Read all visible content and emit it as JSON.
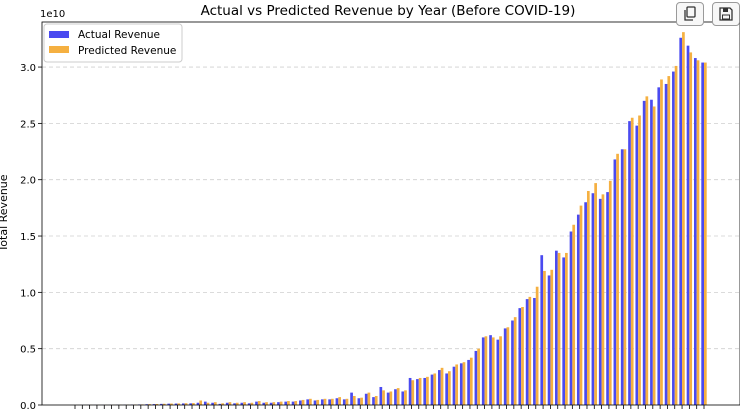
{
  "toolbar": {
    "buttons": [
      {
        "name": "copy-button",
        "icon": "copy-icon"
      },
      {
        "name": "save-button",
        "icon": "floppy-disk-icon"
      }
    ]
  },
  "chart_data": {
    "type": "bar",
    "title": "Actual vs Predicted Revenue by Year (Before COVID-19)",
    "xlabel": "",
    "ylabel": "Total Revenue",
    "y_scale_label": "1e10",
    "y_multiplier": 10000000000,
    "ylim": [
      0,
      3.4
    ],
    "yticks": [
      0.0,
      0.5,
      1.0,
      1.5,
      2.0,
      2.5,
      3.0
    ],
    "ytick_labels": [
      "0.0",
      "0.5",
      "1.0",
      "1.5",
      "2.0",
      "2.5",
      "3.0"
    ],
    "grid": {
      "y": true,
      "x": false
    },
    "legend_position": "top-left",
    "series": [
      {
        "name": "Actual Revenue",
        "color": "#4a4af0",
        "values": [
          0.0,
          0.0,
          0.001,
          0.001,
          0.001,
          0.001,
          0.002,
          0.002,
          0.003,
          0.005,
          0.007,
          0.008,
          0.01,
          0.012,
          0.013,
          0.014,
          0.015,
          0.02,
          0.03,
          0.02,
          0.01,
          0.02,
          0.015,
          0.02,
          0.015,
          0.03,
          0.02,
          0.02,
          0.025,
          0.03,
          0.03,
          0.04,
          0.05,
          0.04,
          0.05,
          0.05,
          0.06,
          0.05,
          0.11,
          0.06,
          0.1,
          0.07,
          0.16,
          0.11,
          0.14,
          0.12,
          0.24,
          0.23,
          0.24,
          0.27,
          0.31,
          0.28,
          0.34,
          0.37,
          0.4,
          0.48,
          0.6,
          0.62,
          0.58,
          0.68,
          0.75,
          0.86,
          0.94,
          0.95,
          1.33,
          1.15,
          1.37,
          1.31,
          1.54,
          1.69,
          1.8,
          1.88,
          1.83,
          1.89,
          2.18,
          2.27,
          2.52,
          2.48,
          2.7,
          2.71,
          2.82,
          2.85,
          2.96,
          3.26,
          3.19,
          3.08,
          3.04
        ]
      },
      {
        "name": "Predicted Revenue",
        "color": "#f5b041",
        "values": [
          0.0,
          0.0,
          0.001,
          0.001,
          0.001,
          0.001,
          0.002,
          0.002,
          0.003,
          0.005,
          0.008,
          0.009,
          0.011,
          0.013,
          0.014,
          0.016,
          0.017,
          0.04,
          0.02,
          0.025,
          0.015,
          0.025,
          0.02,
          0.025,
          0.02,
          0.035,
          0.025,
          0.025,
          0.03,
          0.035,
          0.035,
          0.045,
          0.055,
          0.045,
          0.055,
          0.055,
          0.07,
          0.055,
          0.08,
          0.065,
          0.11,
          0.08,
          0.13,
          0.12,
          0.15,
          0.13,
          0.22,
          0.24,
          0.25,
          0.28,
          0.33,
          0.3,
          0.36,
          0.38,
          0.42,
          0.5,
          0.61,
          0.6,
          0.61,
          0.69,
          0.78,
          0.87,
          0.96,
          1.05,
          1.19,
          1.2,
          1.35,
          1.35,
          1.6,
          1.77,
          1.9,
          1.97,
          1.87,
          1.99,
          2.23,
          2.27,
          2.55,
          2.57,
          2.74,
          2.65,
          2.89,
          2.92,
          3.01,
          3.31,
          3.13,
          3.06,
          3.04
        ]
      }
    ]
  }
}
